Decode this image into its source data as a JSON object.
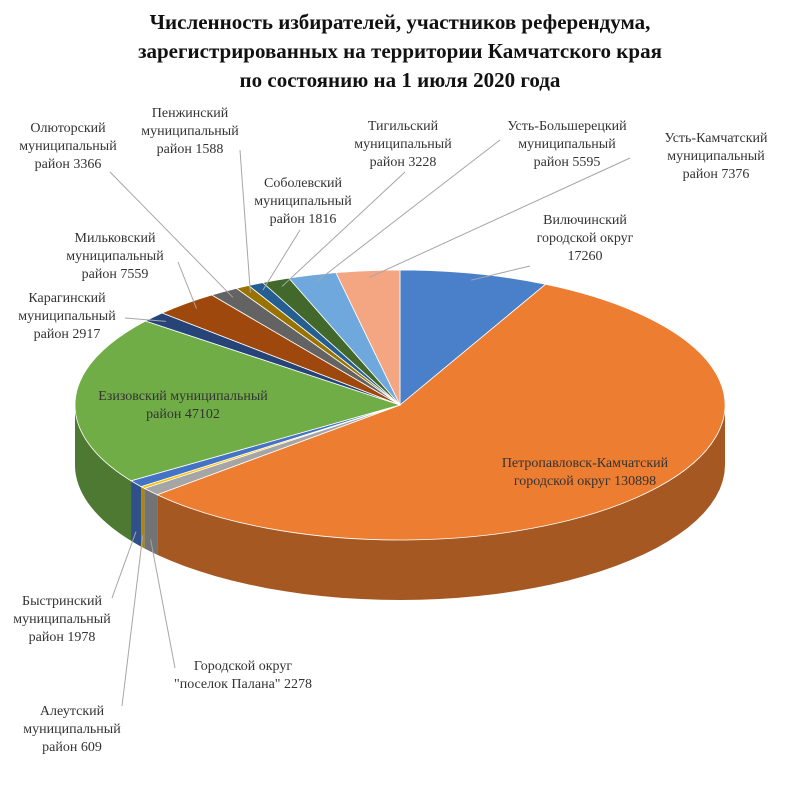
{
  "chart_data": {
    "type": "pie3d",
    "title": [
      "Численность избирателей, участников референдума,",
      "зарегистрированных на территории Камчатского края",
      "по состоянию на 1 июля 2020 года"
    ],
    "categories": [
      "Вилючинский городской округ",
      "Петропавловск-Камчатский городской округ",
      "Городской округ \"поселок Палана\"",
      "Алеутский муниципальный район",
      "Быстринский муниципальный район",
      "Езизовский муниципальный район",
      "Карагинский муниципальный район",
      "Мильковский муниципальный район",
      "Олюторский муниципальный район",
      "Пенжинский муниципальный район",
      "Соболевский муниципальный район",
      "Тигильский муниципальный район",
      "Усть-Большерецкий муниципальный район",
      "Усть-Камчатский муниципальный район"
    ],
    "values": [
      17260,
      130898,
      2278,
      609,
      1978,
      47102,
      2917,
      7559,
      3366,
      1588,
      1816,
      3228,
      5595,
      7376
    ],
    "colors": [
      "#4a7fc9",
      "#ed7d31",
      "#a5a5a5",
      "#ffc000",
      "#4472c4",
      "#70ad47",
      "#264478",
      "#9e480e",
      "#636363",
      "#997300",
      "#255e91",
      "#43682b",
      "#6fa8dc",
      "#f4a582"
    ]
  }
}
